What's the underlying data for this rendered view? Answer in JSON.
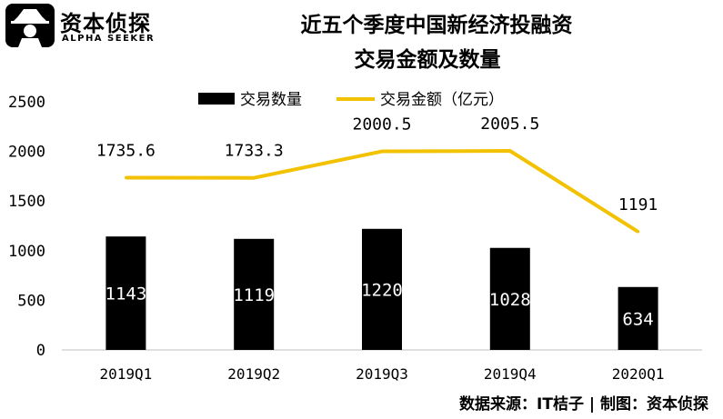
{
  "brand": {
    "name": "资本侦探",
    "subtitle": "ALPHA SEEKER"
  },
  "footer": "数据来源：IT桔子 | 制图：资本侦探",
  "chart_data": {
    "type": "bar+line",
    "title": "近五个季度中国新经济投融资交易金额及数量",
    "title_lines": [
      "近五个季度中国新经济投融资",
      "交易金额及数量"
    ],
    "categories": [
      "2019Q1",
      "2019Q2",
      "2019Q3",
      "2019Q4",
      "2020Q1"
    ],
    "series": [
      {
        "name": "交易数量",
        "type": "bar",
        "values": [
          1143,
          1119,
          1220,
          1028,
          634
        ],
        "color": "#000000"
      },
      {
        "name": "交易金额（亿元）",
        "type": "line",
        "values": [
          1735.6,
          1733.3,
          2000.5,
          2005.5,
          1191
        ],
        "value_labels": [
          "1735.6",
          "1733.3",
          "2000.5",
          "2005.5",
          "1191"
        ],
        "color": "#F2C200"
      }
    ],
    "y_ticks": [
      0,
      500,
      1000,
      1500,
      2000,
      2500
    ],
    "ylim": [
      0,
      2500
    ],
    "grid": false,
    "legend_position": "top"
  }
}
